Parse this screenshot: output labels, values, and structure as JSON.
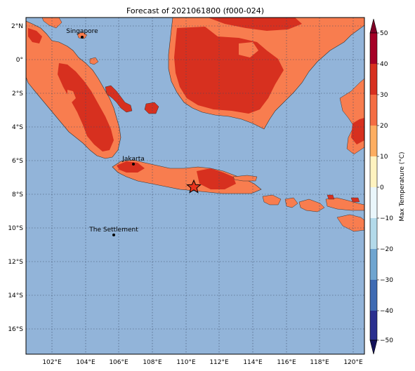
{
  "title": "Forecast of 2021061800 (f000-024)",
  "lon_ticks": [
    "102°E",
    "104°E",
    "106°E",
    "108°E",
    "110°E",
    "112°E",
    "114°E",
    "116°E",
    "118°E",
    "120°E"
  ],
  "lat_ticks": [
    "2°N",
    "0°",
    "2°S",
    "4°S",
    "6°S",
    "8°S",
    "10°S",
    "12°S",
    "14°S",
    "16°S"
  ],
  "extent": {
    "lon_min": 100.0,
    "lon_max": 120.6,
    "lat_min": -17.5,
    "lat_max": 2.5
  },
  "cities": [
    {
      "name": "Singapore",
      "lon": 103.85,
      "lat": 1.29
    },
    {
      "name": "Jakarta",
      "lon": 106.85,
      "lat": -6.2
    },
    {
      "name": "The Settlement",
      "lon": 105.7,
      "lat": -10.4
    }
  ],
  "marker": {
    "symbol": "star",
    "lon": 110.4,
    "lat": -7.55
  },
  "colorbar": {
    "label": "Max Temperature (°C)",
    "ticks": [
      "50",
      "40",
      "30",
      "20",
      "10",
      "0",
      "−10",
      "−20",
      "−30",
      "−40",
      "−50"
    ],
    "min": -50,
    "max": 50
  },
  "colors": {
    "ocean": "#92b4d9",
    "land_warm": "#f87d4f",
    "land_hot": "#d7301f",
    "land_hotter": "#c62a20",
    "land_mild": "#fcae79",
    "grid": "#3a4a66"
  }
}
